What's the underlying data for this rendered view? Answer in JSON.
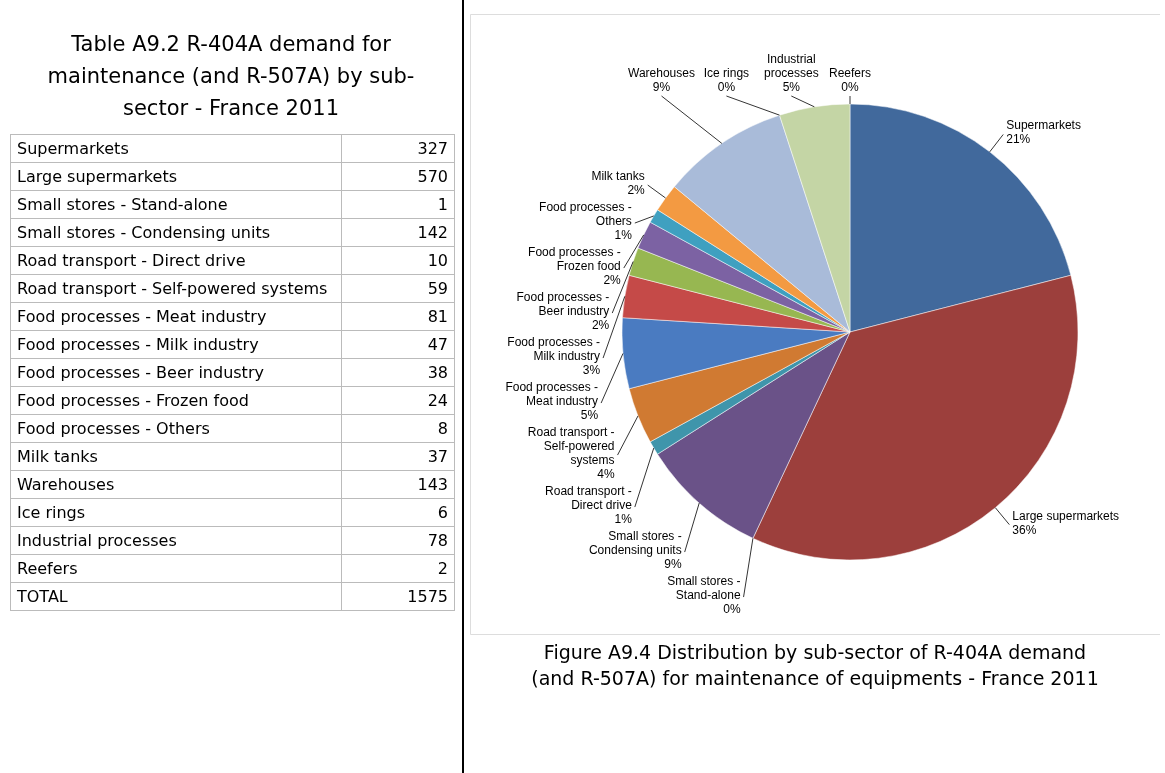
{
  "chart_data": [
    {
      "type": "other",
      "title": "Table A9.2 R-404A demand for maintenance (and R-507A) by sub-sector - France 2011",
      "categories": [
        "Supermarkets",
        "Large supermarkets",
        "Small stores - Stand-alone",
        "Small stores - Condensing units",
        "Road transport - Direct drive",
        "Road transport - Self-powered systems",
        "Food processes - Meat industry",
        "Food processes - Milk industry",
        "Food processes - Beer industry",
        "Food processes - Frozen food",
        "Food processes - Others",
        "Milk tanks",
        "Warehouses",
        "Ice rings",
        "Industrial processes",
        "Reefers",
        "TOTAL"
      ],
      "values": [
        327,
        570,
        1,
        142,
        10,
        59,
        81,
        47,
        38,
        24,
        8,
        37,
        143,
        6,
        78,
        2,
        1575
      ],
      "data_labels": true
    },
    {
      "type": "pie",
      "title": "Figure A9.4 Distribution by sub-sector of R-404A demand (and R-507A) for maintenance of equipments - France 2011",
      "categories": [
        "Supermarkets",
        "Large supermarkets",
        "Small stores - Stand-alone",
        "Small stores - Condensing units",
        "Road transport - Direct drive",
        "Road transport - Self-powered systems",
        "Food processes - Meat industry",
        "Food processes - Milk industry",
        "Food processes - Beer industry",
        "Food processes - Frozen food",
        "Food processes - Others",
        "Milk tanks",
        "Warehouses",
        "Ice rings",
        "Industrial processes",
        "Reefers"
      ],
      "values": [
        21,
        36,
        0,
        9,
        1,
        4,
        5,
        3,
        2,
        2,
        1,
        2,
        9,
        0,
        5,
        0
      ],
      "value_labels": [
        "21%",
        "36%",
        "0%",
        "9%",
        "1%",
        "4%",
        "5%",
        "3%",
        "2%",
        "2%",
        "1%",
        "2%",
        "9%",
        "0%",
        "5%",
        "0%"
      ],
      "colors": [
        "#41699c",
        "#9c3f3c",
        "#7f9a48",
        "#6a5288",
        "#3f95ab",
        "#d07a32",
        "#4a7bc1",
        "#c54a48",
        "#97b751",
        "#7c62a3",
        "#3fa0c0",
        "#f39a42",
        "#a9bbd9",
        "#d9a0a0",
        "#c4d5a5",
        "#bdb0ce"
      ]
    }
  ]
}
